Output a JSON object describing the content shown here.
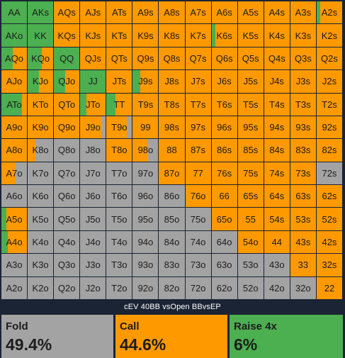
{
  "title": "cEV 40BB vsOpen BBvsEP",
  "colors": {
    "fold": "#a3a3a3",
    "call": "#ff9900",
    "raise": "#4caf50"
  },
  "actions": [
    {
      "key": "fold",
      "label": "Fold",
      "value": "49.4%"
    },
    {
      "key": "call",
      "label": "Call",
      "value": "44.6%"
    },
    {
      "key": "raise",
      "label": "Raise 4x",
      "value": "6%"
    }
  ],
  "ranks": [
    "A",
    "K",
    "Q",
    "J",
    "T",
    "9",
    "8",
    "7",
    "6",
    "5",
    "4",
    "3",
    "2"
  ],
  "hands": [
    [
      "AA",
      "AKs",
      "AQs",
      "AJs",
      "ATs",
      "A9s",
      "A8s",
      "A7s",
      "A6s",
      "A5s",
      "A4s",
      "A3s",
      "A2s"
    ],
    [
      "AKo",
      "KK",
      "KQs",
      "KJs",
      "KTs",
      "K9s",
      "K8s",
      "K7s",
      "K6s",
      "K5s",
      "K4s",
      "K3s",
      "K2s"
    ],
    [
      "AQo",
      "KQo",
      "QQ",
      "QJs",
      "QTs",
      "Q9s",
      "Q8s",
      "Q7s",
      "Q6s",
      "Q5s",
      "Q4s",
      "Q3s",
      "Q2s"
    ],
    [
      "AJo",
      "KJo",
      "QJo",
      "JJ",
      "JTs",
      "J9s",
      "J8s",
      "J7s",
      "J6s",
      "J5s",
      "J4s",
      "J3s",
      "J2s"
    ],
    [
      "ATo",
      "KTo",
      "QTo",
      "JTo",
      "TT",
      "T9s",
      "T8s",
      "T7s",
      "T6s",
      "T5s",
      "T4s",
      "T3s",
      "T2s"
    ],
    [
      "A9o",
      "K9o",
      "Q9o",
      "J9o",
      "T9o",
      "99",
      "98s",
      "97s",
      "96s",
      "95s",
      "94s",
      "93s",
      "92s"
    ],
    [
      "A8o",
      "K8o",
      "Q8o",
      "J8o",
      "T8o",
      "98o",
      "88",
      "87s",
      "86s",
      "85s",
      "84s",
      "83s",
      "82s"
    ],
    [
      "A7o",
      "K7o",
      "Q7o",
      "J7o",
      "T7o",
      "97o",
      "87o",
      "77",
      "76s",
      "75s",
      "74s",
      "73s",
      "72s"
    ],
    [
      "A6o",
      "K6o",
      "Q6o",
      "J6o",
      "T6o",
      "96o",
      "86o",
      "76o",
      "66",
      "65s",
      "64s",
      "63s",
      "62s"
    ],
    [
      "A5o",
      "K5o",
      "Q5o",
      "J5o",
      "T5o",
      "95o",
      "85o",
      "75o",
      "65o",
      "55",
      "54s",
      "53s",
      "52s"
    ],
    [
      "A4o",
      "K4o",
      "Q4o",
      "J4o",
      "T4o",
      "94o",
      "84o",
      "74o",
      "64o",
      "54o",
      "44",
      "43s",
      "42s"
    ],
    [
      "A3o",
      "K3o",
      "Q3o",
      "J3o",
      "T3o",
      "93o",
      "83o",
      "73o",
      "63o",
      "53o",
      "43o",
      "33",
      "32s"
    ],
    [
      "A2o",
      "K2o",
      "Q2o",
      "J2o",
      "T2o",
      "92o",
      "82o",
      "72o",
      "62o",
      "52o",
      "42o",
      "32o",
      "22"
    ]
  ],
  "strategy": [
    [
      [
        1,
        0,
        0
      ],
      [
        1,
        0,
        0
      ],
      [
        0,
        1,
        0
      ],
      [
        0,
        1,
        0
      ],
      [
        0,
        1,
        0
      ],
      [
        0,
        1,
        0
      ],
      [
        0,
        1,
        0
      ],
      [
        0,
        1,
        0
      ],
      [
        0,
        1,
        0
      ],
      [
        0,
        1,
        0
      ],
      [
        0,
        1,
        0
      ],
      [
        0,
        1,
        0
      ],
      [
        0.15,
        0.85,
        0
      ]
    ],
    [
      [
        1,
        0,
        0
      ],
      [
        1,
        0,
        0
      ],
      [
        0,
        1,
        0
      ],
      [
        0,
        1,
        0
      ],
      [
        0,
        1,
        0
      ],
      [
        0,
        1,
        0
      ],
      [
        0,
        1,
        0
      ],
      [
        0,
        1,
        0
      ],
      [
        0.15,
        0.85,
        0
      ],
      [
        0,
        1,
        0
      ],
      [
        0,
        1,
        0
      ],
      [
        0,
        1,
        0
      ],
      [
        0,
        1,
        0
      ]
    ],
    [
      [
        0.45,
        0.55,
        0
      ],
      [
        0.55,
        0.45,
        0
      ],
      [
        1,
        0,
        0
      ],
      [
        0,
        1,
        0
      ],
      [
        0,
        1,
        0
      ],
      [
        0,
        1,
        0
      ],
      [
        0,
        1,
        0
      ],
      [
        0,
        1,
        0
      ],
      [
        0,
        1,
        0
      ],
      [
        0,
        1,
        0
      ],
      [
        0,
        1,
        0
      ],
      [
        0,
        1,
        0
      ],
      [
        0,
        1,
        0
      ]
    ],
    [
      [
        0,
        1,
        0
      ],
      [
        0.45,
        0.55,
        0
      ],
      [
        0.45,
        0.55,
        0
      ],
      [
        1,
        0,
        0
      ],
      [
        0,
        1,
        0
      ],
      [
        0.3,
        0.7,
        0
      ],
      [
        0,
        1,
        0
      ],
      [
        0,
        1,
        0
      ],
      [
        0,
        1,
        0
      ],
      [
        0,
        1,
        0
      ],
      [
        0,
        1,
        0
      ],
      [
        0,
        1,
        0
      ],
      [
        0,
        1,
        0
      ]
    ],
    [
      [
        0.8,
        0.2,
        0
      ],
      [
        0,
        1,
        0
      ],
      [
        0,
        1,
        0
      ],
      [
        0.25,
        0.75,
        0
      ],
      [
        0.35,
        0.65,
        0
      ],
      [
        0,
        1,
        0
      ],
      [
        0,
        1,
        0
      ],
      [
        0,
        1,
        0
      ],
      [
        0,
        1,
        0
      ],
      [
        0,
        1,
        0
      ],
      [
        0,
        1,
        0
      ],
      [
        0,
        1,
        0
      ],
      [
        0,
        1,
        0
      ]
    ],
    [
      [
        0,
        1,
        0
      ],
      [
        0,
        1,
        0
      ],
      [
        0,
        1,
        0
      ],
      [
        0,
        0.85,
        0
      ],
      [
        0,
        0.8,
        0
      ],
      [
        0,
        1,
        0
      ],
      [
        0,
        1,
        0
      ],
      [
        0,
        1,
        0
      ],
      [
        0,
        1,
        0
      ],
      [
        0,
        1,
        0
      ],
      [
        0,
        1,
        0
      ],
      [
        0,
        1,
        0
      ],
      [
        0,
        1,
        0
      ]
    ],
    [
      [
        0,
        1,
        0
      ],
      [
        0,
        0.3,
        0
      ],
      [
        0,
        0,
        0
      ],
      [
        0,
        0,
        0
      ],
      [
        0,
        1,
        0
      ],
      [
        0,
        0.6,
        0
      ],
      [
        0,
        1,
        0
      ],
      [
        0,
        1,
        0
      ],
      [
        0,
        1,
        0
      ],
      [
        0,
        1,
        0
      ],
      [
        0,
        1,
        0
      ],
      [
        0,
        1,
        0
      ],
      [
        0,
        1,
        0
      ]
    ],
    [
      [
        0,
        0.55,
        0
      ],
      [
        0,
        0,
        0
      ],
      [
        0,
        0,
        0
      ],
      [
        0,
        0,
        0
      ],
      [
        0,
        0,
        0
      ],
      [
        0,
        0,
        0
      ],
      [
        0,
        1,
        0
      ],
      [
        0,
        1,
        0
      ],
      [
        0,
        1,
        0
      ],
      [
        0,
        1,
        0
      ],
      [
        0,
        1,
        0
      ],
      [
        0,
        1,
        0
      ],
      [
        0,
        0,
        0
      ]
    ],
    [
      [
        0,
        0,
        0
      ],
      [
        0,
        0,
        0
      ],
      [
        0,
        0,
        0
      ],
      [
        0,
        0,
        0
      ],
      [
        0,
        0,
        0
      ],
      [
        0,
        0,
        0
      ],
      [
        0,
        0,
        0
      ],
      [
        0,
        1,
        0
      ],
      [
        0,
        1,
        0
      ],
      [
        0,
        1,
        0
      ],
      [
        0,
        1,
        0
      ],
      [
        0,
        1,
        0
      ],
      [
        0,
        1,
        0
      ]
    ],
    [
      [
        0.2,
        0.8,
        0
      ],
      [
        0,
        0,
        0
      ],
      [
        0,
        0,
        0
      ],
      [
        0,
        0,
        0
      ],
      [
        0,
        0,
        0
      ],
      [
        0,
        0,
        0
      ],
      [
        0,
        0,
        0
      ],
      [
        0,
        0,
        0
      ],
      [
        0,
        1,
        0
      ],
      [
        0,
        1,
        0
      ],
      [
        0,
        1,
        0
      ],
      [
        0,
        1,
        0
      ],
      [
        0,
        1,
        0
      ]
    ],
    [
      [
        0.25,
        0.75,
        0
      ],
      [
        0,
        0,
        0
      ],
      [
        0,
        0,
        0
      ],
      [
        0,
        0,
        0
      ],
      [
        0,
        0,
        0
      ],
      [
        0,
        0,
        0
      ],
      [
        0,
        0,
        0
      ],
      [
        0,
        0,
        0
      ],
      [
        0,
        0,
        0
      ],
      [
        0,
        1,
        0
      ],
      [
        0,
        1,
        0
      ],
      [
        0,
        1,
        0
      ],
      [
        0,
        1,
        0
      ]
    ],
    [
      [
        0,
        0,
        0
      ],
      [
        0,
        0,
        0
      ],
      [
        0,
        0,
        0
      ],
      [
        0,
        0,
        0
      ],
      [
        0,
        0,
        0
      ],
      [
        0,
        0,
        0
      ],
      [
        0,
        0,
        0
      ],
      [
        0,
        0,
        0
      ],
      [
        0,
        0,
        0
      ],
      [
        0,
        0,
        0
      ],
      [
        0,
        0,
        0
      ],
      [
        0,
        1,
        0
      ],
      [
        0,
        1,
        0
      ]
    ],
    [
      [
        0,
        0,
        0
      ],
      [
        0,
        0,
        0
      ],
      [
        0,
        0,
        0
      ],
      [
        0,
        0,
        0
      ],
      [
        0,
        0,
        0
      ],
      [
        0,
        0,
        0
      ],
      [
        0,
        0,
        0
      ],
      [
        0,
        0,
        0
      ],
      [
        0,
        0,
        0
      ],
      [
        0,
        0,
        0
      ],
      [
        0,
        0,
        0
      ],
      [
        0,
        0,
        0
      ],
      [
        0,
        1,
        0
      ]
    ]
  ]
}
